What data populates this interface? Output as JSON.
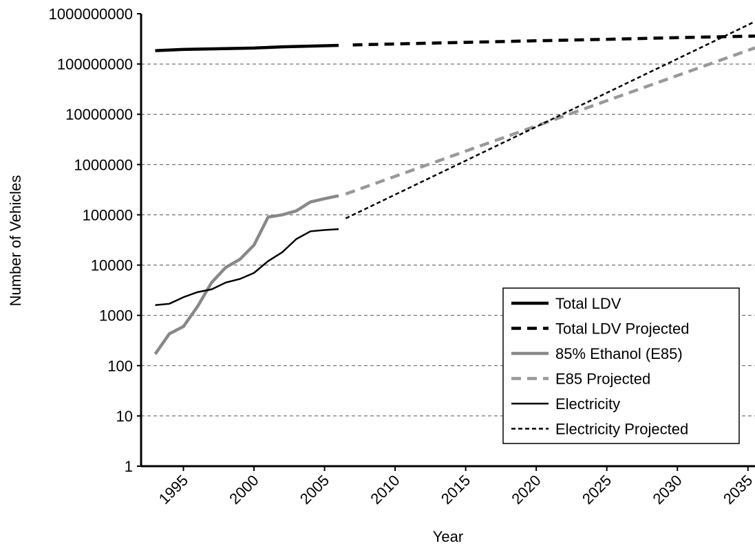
{
  "chart_data": {
    "type": "line",
    "xlabel": "Year",
    "ylabel": "Number of Vehicles",
    "log_scale_y": true,
    "grid": true,
    "legend_position": "lower-right",
    "xlim": [
      1992,
      2035.5
    ],
    "xticks": [
      1995,
      2000,
      2005,
      2010,
      2015,
      2020,
      2025,
      2030,
      2035
    ],
    "ylim": [
      1,
      1000000000
    ],
    "yticks": [
      1,
      10,
      100,
      1000,
      10000,
      100000,
      1000000,
      10000000,
      100000000,
      1000000000
    ],
    "series": [
      {
        "name": "Total LDV",
        "color": "#000000",
        "style": "solid",
        "weight": "thick",
        "x": [
          1993,
          1995,
          2000,
          2002,
          2006
        ],
        "values": [
          185000000,
          195000000,
          208000000,
          220000000,
          235000000
        ]
      },
      {
        "name": "Total LDV Projected",
        "color": "#000000",
        "style": "dashed",
        "weight": "thick",
        "x": [
          2007,
          2015,
          2020,
          2025,
          2030,
          2035.5
        ],
        "values": [
          240000000,
          270000000,
          290000000,
          310000000,
          335000000,
          360000000
        ]
      },
      {
        "name": "85% Ethanol (E85)",
        "color": "#888888",
        "style": "solid",
        "weight": "thick",
        "x": [
          1993,
          1994,
          1995,
          1996,
          1997,
          1998,
          1999,
          2000,
          2001,
          2002,
          2003,
          2004,
          2005,
          2006
        ],
        "values": [
          170,
          430,
          600,
          1500,
          4500,
          9000,
          13000,
          25000,
          90000,
          100000,
          120000,
          180000,
          210000,
          240000
        ]
      },
      {
        "name": "E85 Projected",
        "color": "#999999",
        "style": "dashed",
        "weight": "thick",
        "x": [
          2006.5,
          2035.5
        ],
        "values": [
          260000,
          210000000
        ]
      },
      {
        "name": "Electricity",
        "color": "#000000",
        "style": "solid",
        "weight": "thin",
        "x": [
          1993,
          1994,
          1995,
          1996,
          1997,
          1998,
          1999,
          2000,
          2001,
          2002,
          2003,
          2004,
          2005,
          2006
        ],
        "values": [
          1600,
          1700,
          2300,
          2900,
          3300,
          4500,
          5300,
          7000,
          12000,
          18000,
          33000,
          47000,
          50000,
          52000
        ]
      },
      {
        "name": "Electricity Projected",
        "color": "#000000",
        "style": "dotted",
        "weight": "thin",
        "x": [
          2006.5,
          2035.5
        ],
        "values": [
          85000,
          700000000
        ]
      }
    ]
  }
}
